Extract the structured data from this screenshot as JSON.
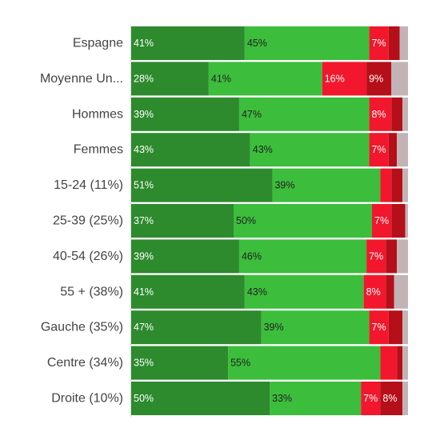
{
  "chart_data": {
    "type": "bar",
    "orientation": "horizontal",
    "stacked": true,
    "normalized": true,
    "xlim": [
      0,
      100
    ],
    "grid": false,
    "legend": "none",
    "title": "",
    "xlabel": "",
    "ylabel": "",
    "categories": [
      "Espagne",
      "Moyenne Un...",
      "Hommes",
      "Femmes",
      "15-24 (11%)",
      "25-39 (25%)",
      "40-54 (26%)",
      "55 + (38%)",
      "Gauche (35%)",
      "Centre (34%)",
      "Droite (10%)"
    ],
    "series": [
      {
        "color": "#2d8a2d",
        "label_color": "#ffffff",
        "values": [
          41,
          28,
          39,
          43,
          51,
          37,
          39,
          41,
          47,
          35,
          50
        ],
        "labels": [
          "41%",
          "28%",
          "39%",
          "43%",
          "51%",
          "37%",
          "39%",
          "41%",
          "47%",
          "35%",
          "50%"
        ]
      },
      {
        "color": "#3cbd3c",
        "label_color": "#222222",
        "values": [
          45,
          41,
          47,
          43,
          39,
          50,
          46,
          43,
          39,
          55,
          33
        ],
        "labels": [
          "45%",
          "41%",
          "47%",
          "43%",
          "39%",
          "50%",
          "46%",
          "43%",
          "39%",
          "55%",
          "33%"
        ]
      },
      {
        "color": "#f2172c",
        "label_color": "#ffffff",
        "values": [
          7,
          16,
          8,
          7,
          4,
          7,
          7,
          8,
          7,
          6,
          7
        ],
        "labels": [
          "7%",
          "16%",
          "8%",
          "7%",
          "",
          "7%",
          "7%",
          "8%",
          "7%",
          "",
          "7%"
        ]
      },
      {
        "color": "#b50f19",
        "label_color": "#ffffff",
        "values": [
          4,
          9,
          4,
          3,
          4,
          5,
          4,
          3,
          5,
          2,
          8
        ],
        "labels": [
          "",
          "9%",
          "",
          "",
          "",
          "",
          "",
          "",
          "",
          "",
          "8%"
        ]
      },
      {
        "color": "#c2b4b6",
        "label_color": "#222222",
        "values": [
          3,
          6,
          2,
          4,
          2,
          1,
          4,
          5,
          2,
          2,
          2
        ],
        "labels": [
          "",
          "",
          "",
          "",
          "",
          "",
          "",
          "",
          "",
          "",
          ""
        ]
      }
    ]
  }
}
